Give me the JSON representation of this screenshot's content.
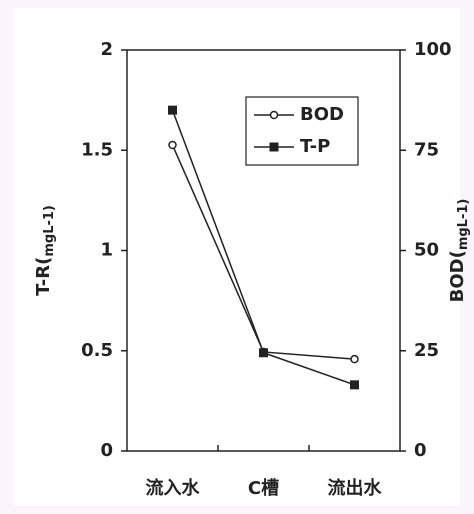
{
  "chart_data": {
    "type": "line",
    "categories": [
      "流入水",
      "C槽",
      "流出水"
    ],
    "ylabel": {
      "main": "T-R(",
      "sub": "mgL-1)"
    },
    "y2label": {
      "main": "BOD(",
      "sub": "mgL-1)"
    },
    "ylim": [
      0,
      2
    ],
    "yticks": [
      0,
      0.5,
      1,
      1.5,
      2
    ],
    "y2lim": [
      0,
      100
    ],
    "y2ticks": [
      0,
      25,
      50,
      75,
      100
    ],
    "legend": "upper right",
    "series": [
      {
        "name": "BOD",
        "color": "#222222",
        "marker": "open-circle",
        "axis": "y2",
        "values": [
          76.3,
          24.7,
          22.9
        ]
      },
      {
        "name": "T-P",
        "color": "#222222",
        "marker": "filled-square",
        "values": [
          1.7,
          0.49,
          0.33
        ]
      }
    ]
  }
}
